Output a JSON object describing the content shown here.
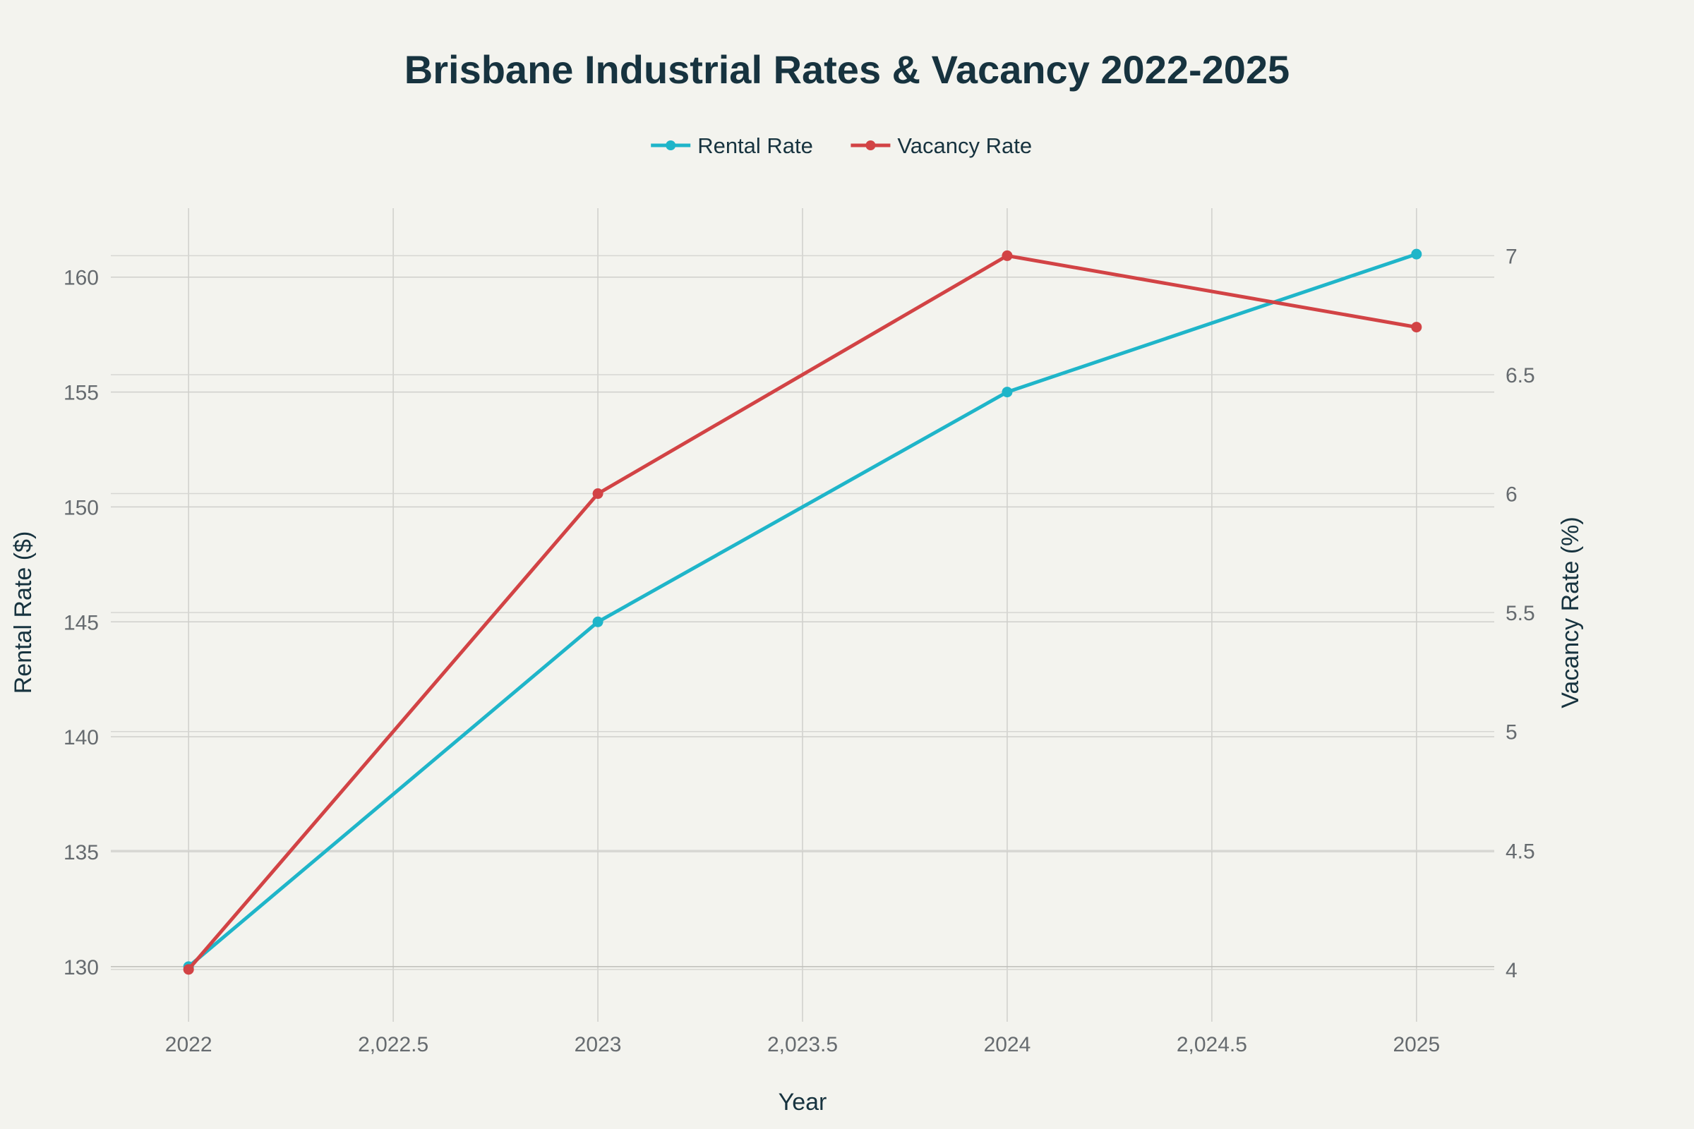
{
  "chart_data": {
    "type": "line",
    "title": "Brisbane Industrial Rates & Vacancy 2022-2025",
    "xlabel": "Year",
    "ylabel": "Rental Rate ($)",
    "y2label": "Vacancy Rate (%)",
    "x": [
      2022,
      2023,
      2024,
      2025
    ],
    "xlim": [
      2021.81,
      2025.19
    ],
    "xticks": [
      2022,
      2022.5,
      2023,
      2023.5,
      2024,
      2024.5,
      2025
    ],
    "xtick_labels": [
      "2022",
      "2,022.5",
      "2023",
      "2,023.5",
      "2024",
      "2,024.5",
      "2025"
    ],
    "ylim": [
      127.6,
      163
    ],
    "yticks": [
      130,
      135,
      140,
      145,
      150,
      155,
      160
    ],
    "y2lim": [
      3.78,
      7.2
    ],
    "y2ticks": [
      4,
      4.5,
      5,
      5.5,
      6,
      6.5,
      7
    ],
    "grid": true,
    "legend_position": "top-center",
    "series": [
      {
        "name": "Rental Rate",
        "axis": "left",
        "color": "#1fb5c9",
        "values": [
          130,
          145,
          155,
          161
        ]
      },
      {
        "name": "Vacancy Rate",
        "axis": "right",
        "color": "#d24345",
        "values": [
          4.0,
          6.0,
          7.0,
          6.7
        ]
      }
    ]
  }
}
